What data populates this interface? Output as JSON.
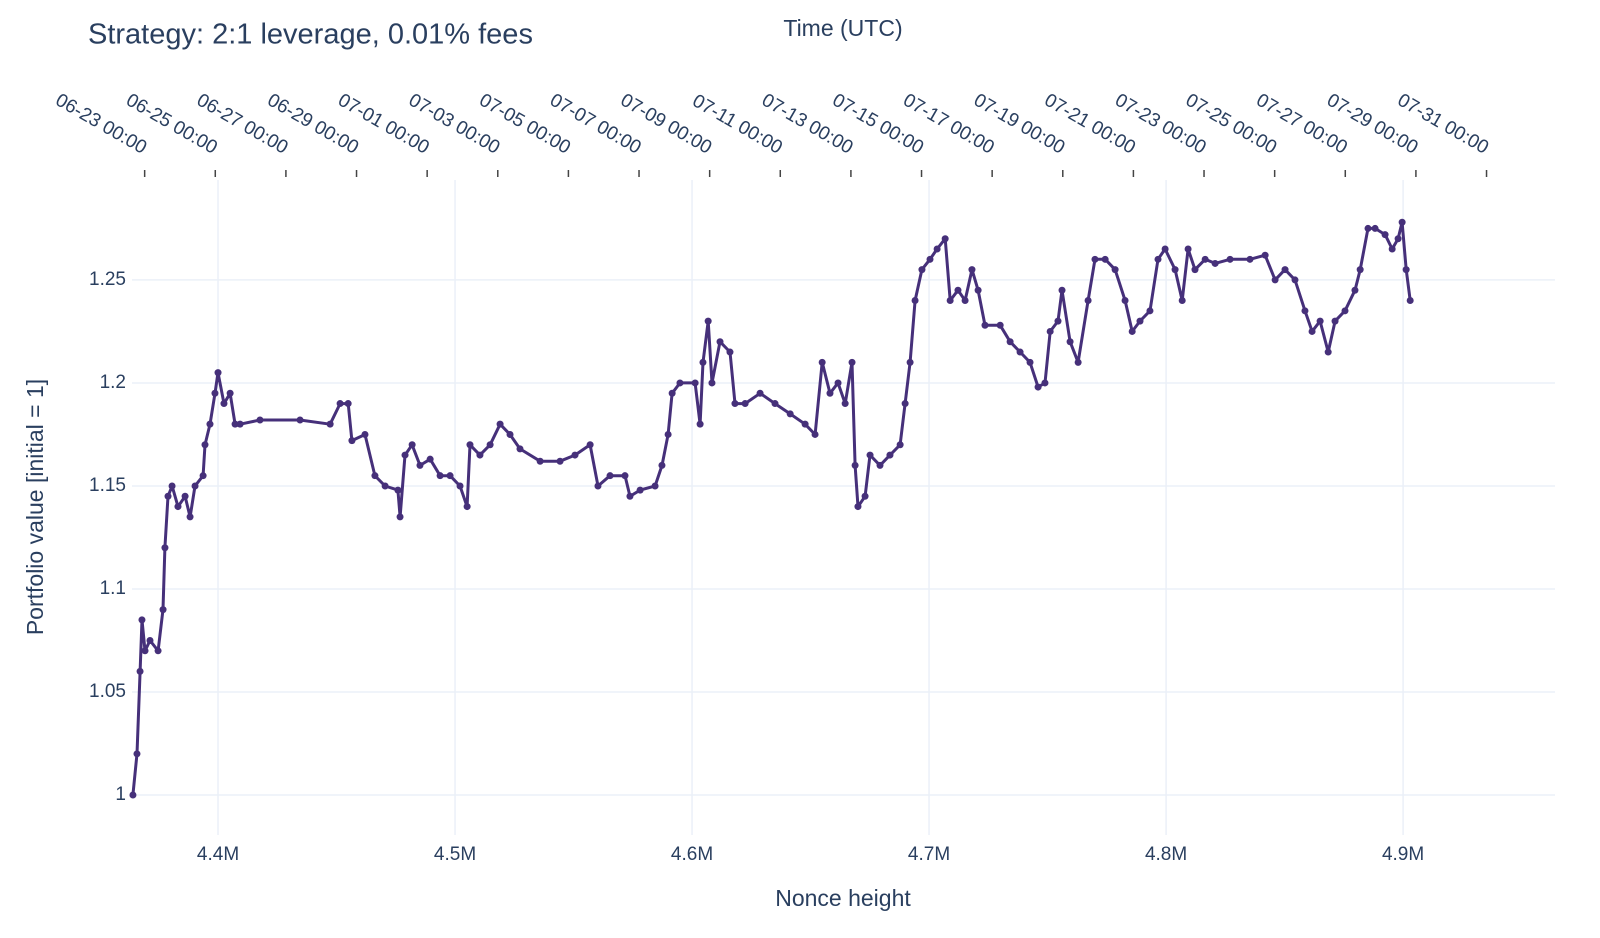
{
  "chart_data": {
    "type": "line",
    "mode": "lines+markers",
    "title": "Strategy: 2:1 leverage, 0.01% fees",
    "x_title": "Nonce height",
    "y_title": "Portfolio value [initial = 1]",
    "x2_title": "Time (UTC)",
    "color": "#46307a",
    "grid": true,
    "xlim": [
      4363700,
      4964100
    ],
    "xticks": [
      {
        "value": 4400000,
        "label": "4.4M"
      },
      {
        "value": 4500000,
        "label": "4.5M"
      },
      {
        "value": 4600000,
        "label": "4.6M"
      },
      {
        "value": 4700000,
        "label": "4.7M"
      },
      {
        "value": 4800000,
        "label": "4.8M"
      },
      {
        "value": 4900000,
        "label": "4.9M"
      }
    ],
    "ylim": [
      0.9806,
      1.2985
    ],
    "yticks": [
      1,
      1.05,
      1.1,
      1.15,
      1.2,
      1.25
    ],
    "x2lim": [
      "06-22 15:24",
      "08-01 22:32"
    ],
    "x2ticks": [
      "06-23 00:00",
      "06-25 00:00",
      "06-27 00:00",
      "06-29 00:00",
      "07-01 00:00",
      "07-03 00:00",
      "07-05 00:00",
      "07-07 00:00",
      "07-09 00:00",
      "07-11 00:00",
      "07-13 00:00",
      "07-15 00:00",
      "07-17 00:00",
      "07-19 00:00",
      "07-21 00:00",
      "07-23 00:00",
      "07-25 00:00",
      "07-27 00:00",
      "07-29 00:00",
      "07-31 00:00"
    ],
    "x": [
      4364100,
      4365800,
      4367100,
      4367900,
      4369200,
      4371300,
      4374700,
      4376800,
      4377600,
      4378900,
      4380600,
      4383100,
      4386100,
      4388200,
      4390300,
      4393700,
      4394500,
      4396600,
      4398700,
      4400000,
      4402500,
      4405100,
      4407200,
      4409300,
      4417700,
      4434600,
      4447300,
      4451500,
      4454900,
      4456500,
      4462000,
      4466200,
      4470500,
      4475900,
      4476800,
      4478900,
      4481900,
      4485200,
      4489500,
      4493700,
      4497900,
      4502100,
      4505100,
      4506300,
      4510500,
      4514800,
      4519000,
      4523200,
      4527400,
      4535900,
      4544300,
      4550600,
      4557000,
      4560300,
      4565400,
      4571700,
      4573800,
      4578100,
      4584400,
      4587300,
      4589900,
      4591600,
      4594900,
      4601300,
      4603400,
      4604600,
      4606800,
      4608400,
      4611800,
      4616000,
      4618100,
      4622400,
      4628700,
      4635000,
      4641400,
      4647700,
      4651900,
      4654900,
      4658200,
      4661600,
      4664600,
      4667500,
      4668800,
      4670000,
      4673000,
      4675100,
      4679300,
      4683500,
      4687800,
      4689900,
      4692000,
      4694100,
      4697000,
      4700400,
      4703400,
      4706800,
      4708900,
      4712200,
      4715200,
      4718100,
      4720700,
      4723600,
      4730000,
      4734200,
      4738400,
      4742600,
      4746000,
      4748900,
      4751100,
      4754400,
      4756100,
      4759500,
      4762900,
      4767100,
      4770000,
      4774300,
      4778500,
      4782700,
      4785700,
      4789000,
      4793200,
      4796600,
      4799600,
      4803800,
      4806800,
      4809300,
      4812200,
      4816500,
      4820700,
      4827000,
      4835400,
      4841800,
      4846000,
      4850200,
      4854400,
      4858600,
      4861600,
      4865000,
      4868400,
      4871300,
      4875500,
      4879700,
      4881900,
      4885200,
      4888200,
      4892400,
      4895400,
      4897900,
      4899600,
      4901300,
      4903000
    ],
    "values": [
      1.0,
      1.02,
      1.06,
      1.085,
      1.07,
      1.075,
      1.07,
      1.09,
      1.12,
      1.145,
      1.15,
      1.14,
      1.145,
      1.135,
      1.15,
      1.155,
      1.17,
      1.18,
      1.195,
      1.205,
      1.19,
      1.195,
      1.18,
      1.18,
      1.182,
      1.182,
      1.18,
      1.19,
      1.19,
      1.172,
      1.175,
      1.155,
      1.15,
      1.148,
      1.135,
      1.165,
      1.17,
      1.16,
      1.163,
      1.155,
      1.155,
      1.15,
      1.14,
      1.17,
      1.165,
      1.17,
      1.18,
      1.175,
      1.168,
      1.162,
      1.162,
      1.165,
      1.17,
      1.15,
      1.155,
      1.155,
      1.145,
      1.148,
      1.15,
      1.16,
      1.175,
      1.195,
      1.2,
      1.2,
      1.18,
      1.21,
      1.23,
      1.2,
      1.22,
      1.215,
      1.19,
      1.19,
      1.195,
      1.19,
      1.185,
      1.18,
      1.175,
      1.21,
      1.195,
      1.2,
      1.19,
      1.21,
      1.16,
      1.14,
      1.145,
      1.165,
      1.16,
      1.165,
      1.17,
      1.19,
      1.21,
      1.24,
      1.255,
      1.26,
      1.265,
      1.27,
      1.24,
      1.245,
      1.24,
      1.255,
      1.245,
      1.228,
      1.228,
      1.22,
      1.215,
      1.21,
      1.198,
      1.2,
      1.225,
      1.23,
      1.245,
      1.22,
      1.21,
      1.24,
      1.26,
      1.26,
      1.255,
      1.24,
      1.225,
      1.23,
      1.235,
      1.26,
      1.265,
      1.255,
      1.24,
      1.265,
      1.255,
      1.26,
      1.258,
      1.26,
      1.26,
      1.262,
      1.25,
      1.255,
      1.25,
      1.235,
      1.225,
      1.23,
      1.215,
      1.23,
      1.235,
      1.245,
      1.255,
      1.275,
      1.275,
      1.272,
      1.265,
      1.27,
      1.278,
      1.255,
      1.24
    ]
  }
}
